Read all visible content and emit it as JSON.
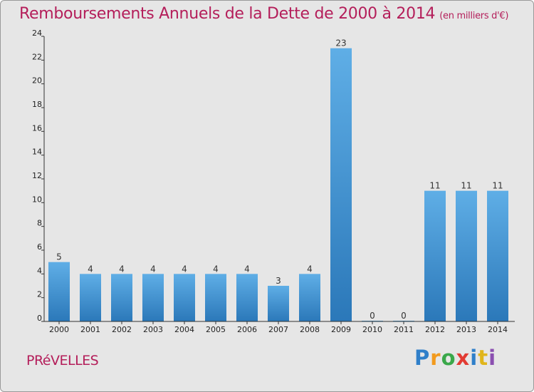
{
  "title": "Remboursements Annuels de la Dette de 2000 à 2014",
  "unit_note": "(en milliers d'€)",
  "commune": "PRéVELLES",
  "logo": {
    "letters": [
      "P",
      "r",
      "o",
      "x",
      "i",
      "t",
      "i"
    ],
    "colors": [
      "#2f7fc9",
      "#f29a1d",
      "#3aa84a",
      "#e23b33",
      "#2f7fc9",
      "#e0b51b",
      "#8b4fb0"
    ]
  },
  "colors": {
    "title": "#b41e5a",
    "bar_light": "#5faee6",
    "bar_dark": "#2b78b9",
    "background": "#e6e6e6"
  },
  "chart_data": {
    "type": "bar",
    "categories": [
      "2000",
      "2001",
      "2002",
      "2003",
      "2004",
      "2005",
      "2006",
      "2007",
      "2008",
      "2009",
      "2010",
      "2011",
      "2012",
      "2013",
      "2014"
    ],
    "values": [
      5,
      4,
      4,
      4,
      4,
      4,
      4,
      3,
      4,
      23,
      0,
      0,
      11,
      11,
      11
    ],
    "data_labels": [
      "5",
      "4",
      "4",
      "4",
      "4",
      "4",
      "4",
      "3",
      "4",
      "23",
      "0",
      "0",
      "11",
      "11",
      "11"
    ],
    "ylim": [
      0,
      24
    ],
    "yticks": [
      0,
      2,
      4,
      6,
      8,
      10,
      12,
      14,
      16,
      18,
      20,
      22,
      24
    ],
    "grid": false,
    "xlabel": "",
    "ylabel": ""
  }
}
